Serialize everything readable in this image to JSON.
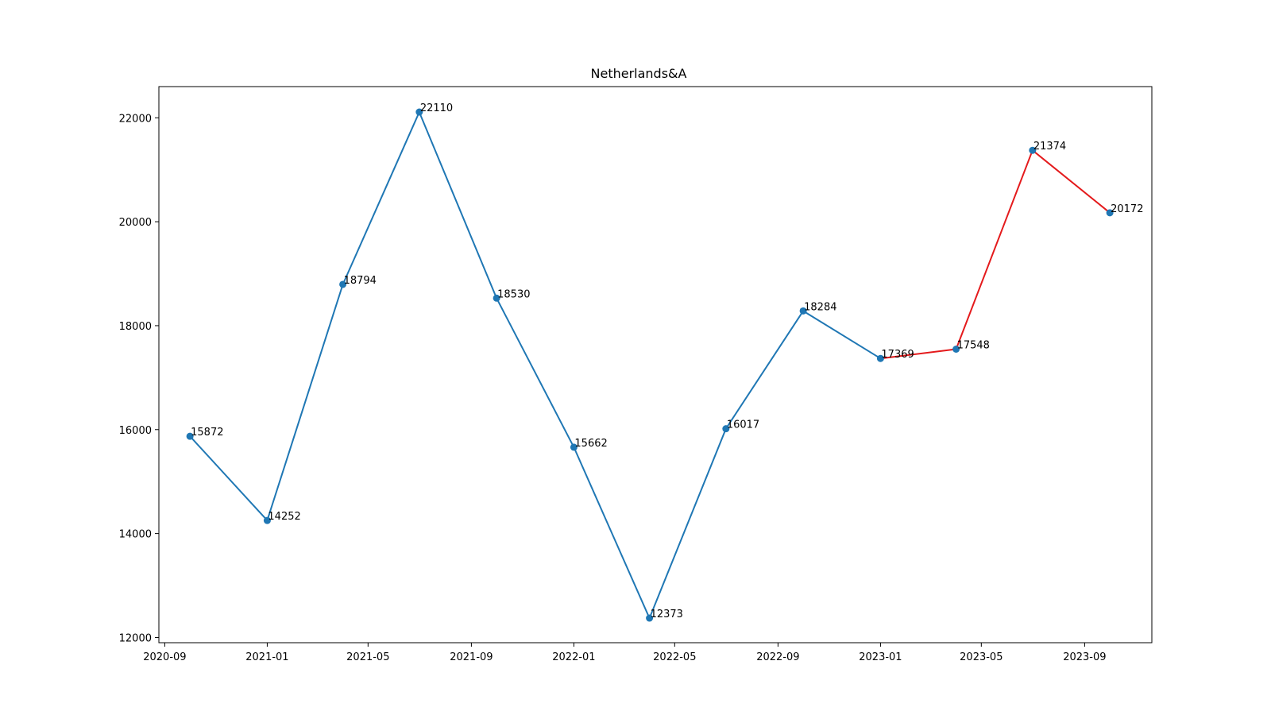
{
  "chart_data": {
    "type": "line",
    "title": "Netherlands&A",
    "xlabel": "",
    "ylabel": "",
    "x_axis_kind": "date",
    "xlim": [
      "2020-08-25",
      "2023-11-20"
    ],
    "ylim": [
      11900,
      22600
    ],
    "x_ticks": [
      "2020-09-01",
      "2021-01-01",
      "2021-05-01",
      "2021-09-01",
      "2022-01-01",
      "2022-05-01",
      "2022-09-01",
      "2023-01-01",
      "2023-05-01",
      "2023-09-01"
    ],
    "x_tick_labels": [
      "2020-09",
      "2021-01",
      "2021-05",
      "2021-09",
      "2022-01",
      "2022-05",
      "2022-09",
      "2023-01",
      "2023-05",
      "2023-09"
    ],
    "y_ticks": [
      12000,
      14000,
      16000,
      18000,
      20000,
      22000
    ],
    "y_tick_labels": [
      "12000",
      "14000",
      "16000",
      "18000",
      "20000",
      "22000"
    ],
    "grid": false,
    "legend": "none",
    "series": [
      {
        "color": "#1f77b4",
        "marker": "circle",
        "x": [
          "2020-10-01",
          "2021-01-01",
          "2021-04-01",
          "2021-07-01",
          "2021-10-01",
          "2022-01-01",
          "2022-04-01",
          "2022-07-01",
          "2022-10-01",
          "2023-01-01"
        ],
        "values": [
          15872,
          14252,
          18794,
          22110,
          18530,
          15662,
          12373,
          16017,
          18284,
          17369
        ]
      },
      {
        "color": "#e41a1c",
        "marker": "circle",
        "marker_color": "#1f77b4",
        "x": [
          "2023-01-01",
          "2023-04-01",
          "2023-07-01",
          "2023-10-01"
        ],
        "values": [
          17369,
          17548,
          21374,
          20172
        ]
      }
    ],
    "data_labels": [
      "15872",
      "14252",
      "18794",
      "22110",
      "18530",
      "15662",
      "12373",
      "16017",
      "18284",
      "17369",
      "17548",
      "21374",
      "20172"
    ]
  }
}
